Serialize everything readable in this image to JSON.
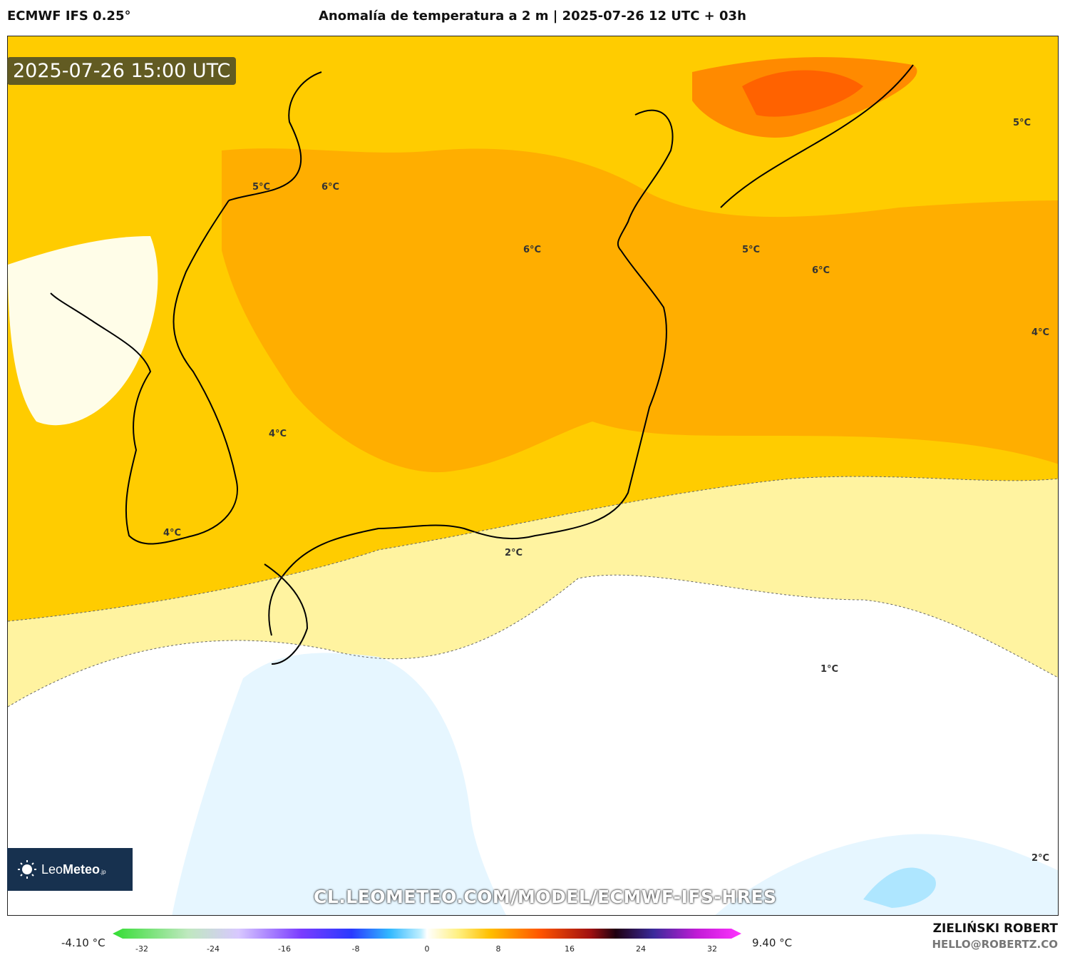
{
  "header": {
    "model": "ECMWF IFS 0.25°",
    "title": "Anomalía de temperatura a 2 m | 2025-07-26 12 UTC + 03h"
  },
  "map": {
    "timestamp": "2025-07-26 15:00 UTC",
    "contour_labels": [
      "5°C",
      "6°C",
      "6°C",
      "5°C",
      "6°C",
      "5°C",
      "4°C",
      "4°C",
      "4°C",
      "2°C",
      "1°C",
      "2°C"
    ],
    "colors": {
      "ocean_warm": "#FFC200",
      "warm_orange": "#FFA500",
      "hot": "#FF6A00",
      "pale": "#FFF6B0",
      "white": "#FFFFFF",
      "cool": "#DDF2FF",
      "cold": "#A8E6FF",
      "coast": "#000000"
    }
  },
  "logo": {
    "brand_light": "Leo",
    "brand_bold": "Meteo",
    "suffix": ".jp"
  },
  "watermark": "CL.LEOMETEO.COM/MODEL/ECMWF-IFS-HRES",
  "colorbar": {
    "min_label": "-4.10 °C",
    "max_label": "9.40 °C",
    "ticks": [
      "-32",
      "-24",
      "-16",
      "-8",
      "0",
      "8",
      "16",
      "24",
      "32"
    ]
  },
  "footer": {
    "author": "ZIELIŃSKI ROBERT",
    "email": "HELLO@ROBERTZ.CO"
  }
}
